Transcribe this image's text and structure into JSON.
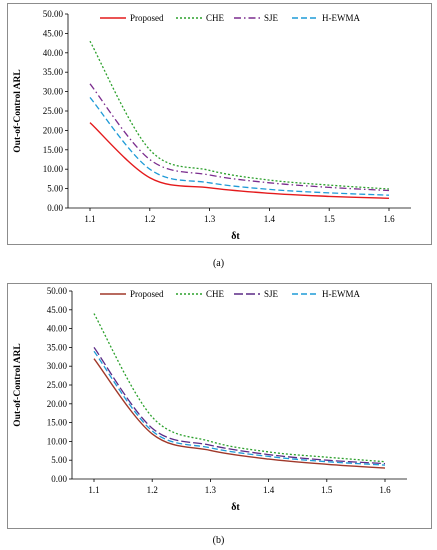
{
  "chart_data": [
    {
      "type": "line",
      "panel_label": "(a)",
      "xlabel": "δt",
      "ylabel": "Out-of-Control ARL",
      "x": [
        1.1,
        1.2,
        1.3,
        1.4,
        1.5,
        1.6
      ],
      "x_ticks": [
        "1.1",
        "1.2",
        "1.3",
        "1.4",
        "1.5",
        "1.6"
      ],
      "ylim": [
        0,
        50
      ],
      "y_ticks": [
        "0.00",
        "5.00",
        "10.00",
        "15.00",
        "20.00",
        "25.00",
        "30.00",
        "35.00",
        "40.00",
        "45.00",
        "50.00"
      ],
      "legend_position": "top",
      "grid": false,
      "series": [
        {
          "name": "Proposed",
          "color": "#e41a1c",
          "dash": "solid",
          "values": [
            22.0,
            7.8,
            5.2,
            3.8,
            3.0,
            2.5
          ]
        },
        {
          "name": "CHE",
          "color": "#2ca02c",
          "dash": "dotted",
          "values": [
            43.0,
            15.0,
            9.7,
            7.2,
            5.9,
            4.9
          ]
        },
        {
          "name": "SJE",
          "color": "#7b2d8e",
          "dash": "dashdot",
          "values": [
            32.0,
            12.5,
            8.5,
            6.5,
            5.3,
            4.5
          ]
        },
        {
          "name": "H-EWMA",
          "color": "#1f9bd7",
          "dash": "dashed",
          "values": [
            28.5,
            10.0,
            6.5,
            4.8,
            3.9,
            3.3
          ]
        }
      ]
    },
    {
      "type": "line",
      "panel_label": "(b)",
      "xlabel": "δt",
      "ylabel": "Out-of-Control ARL",
      "x": [
        1.1,
        1.2,
        1.3,
        1.4,
        1.5,
        1.6
      ],
      "x_ticks": [
        "1.1",
        "1.2",
        "1.3",
        "1.4",
        "1.5",
        "1.6"
      ],
      "ylim": [
        0,
        50
      ],
      "y_ticks": [
        "0.00",
        "5.00",
        "10.00",
        "15.00",
        "20.00",
        "25.00",
        "30.00",
        "35.00",
        "40.00",
        "45.00",
        "50.00"
      ],
      "legend_position": "top",
      "grid": false,
      "series": [
        {
          "name": "Proposed",
          "color": "#a0382a",
          "dash": "solid",
          "values": [
            32.0,
            12.0,
            7.6,
            5.3,
            3.9,
            2.9
          ]
        },
        {
          "name": "CHE",
          "color": "#2ca02c",
          "dash": "dotted",
          "values": [
            44.0,
            16.5,
            10.0,
            7.2,
            5.8,
            4.6
          ]
        },
        {
          "name": "SJE",
          "color": "#5b2a86",
          "dash": "longdash",
          "values": [
            35.0,
            13.5,
            9.0,
            6.5,
            5.0,
            4.1
          ]
        },
        {
          "name": "H-EWMA",
          "color": "#1f9bd7",
          "dash": "dashed",
          "values": [
            34.0,
            12.8,
            8.3,
            6.0,
            4.6,
            3.7
          ]
        }
      ]
    }
  ]
}
